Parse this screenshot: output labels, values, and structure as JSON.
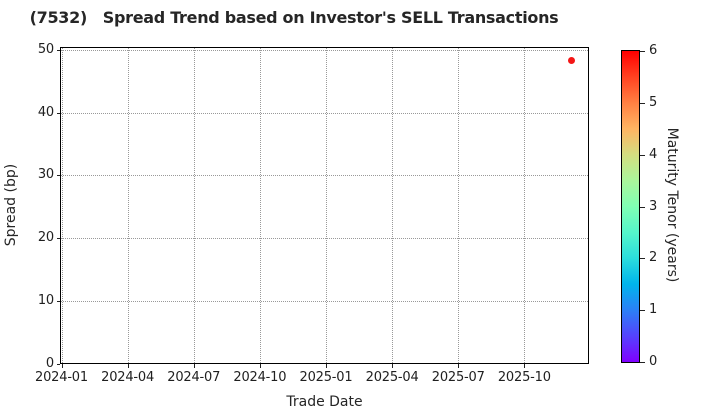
{
  "chart_data": {
    "type": "scatter",
    "title": "(7532)   Spread Trend based on Investor's SELL Transactions",
    "xlabel": "Trade Date",
    "ylabel": "Spread (bp)",
    "x_tick_labels": [
      "2024-01",
      "2024-04",
      "2024-07",
      "2024-10",
      "2025-01",
      "2025-04",
      "2025-07",
      "2025-10"
    ],
    "y_tick_values": [
      0,
      10,
      20,
      30,
      40,
      50
    ],
    "ylim": [
      0,
      50.4
    ],
    "xlim": [
      "2023-12-30",
      "2025-12-28"
    ],
    "grid": {
      "visible": true,
      "style": "dotted"
    },
    "legend": "none",
    "points": [
      {
        "trade_date": "2025-12-05",
        "spread_bp": 48.4,
        "maturity_tenor_years": 6.0,
        "color": "#f41616"
      }
    ],
    "colorbar": {
      "label": "Maturity Tenor (years)",
      "min": 0,
      "max": 6,
      "tick_values": [
        0,
        1,
        2,
        3,
        4,
        5,
        6
      ],
      "colormap": "rainbow",
      "gradient_bottom_to_top": [
        "#8000ff",
        "#5542fd",
        "#2b80f6",
        "#00b4ec",
        "#2bdddd",
        "#55f6ca",
        "#80ffb4",
        "#aaf69b",
        "#d4dd80",
        "#ffb462",
        "#ff8042",
        "#ff4221",
        "#ff0000"
      ]
    },
    "colors": {
      "background": "#ffffff",
      "spine": "#000000",
      "grid": "#999999",
      "text": "#1f1f1f",
      "point_red": "#f41616"
    }
  }
}
